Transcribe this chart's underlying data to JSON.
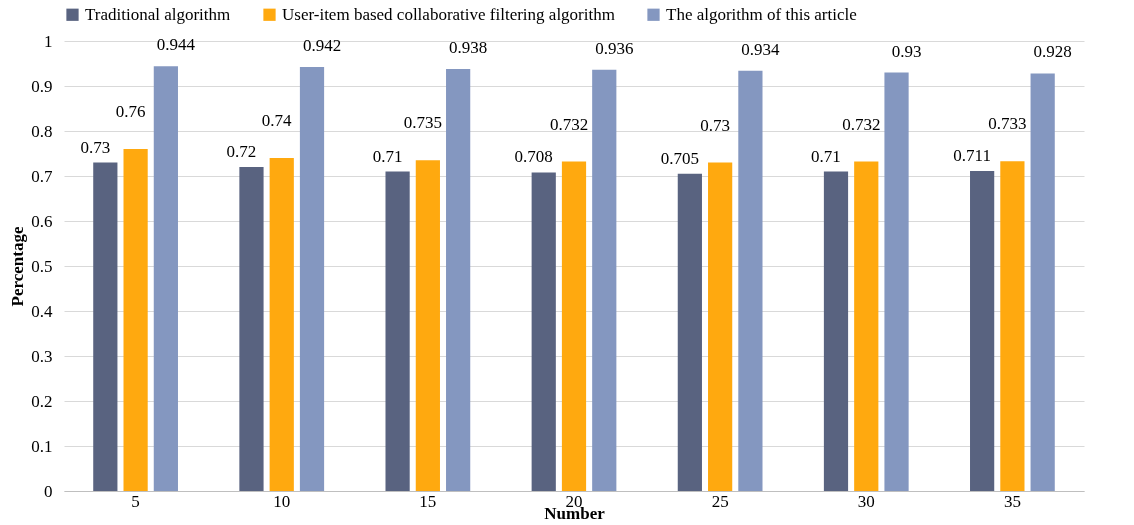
{
  "chart_data": {
    "type": "bar",
    "xlabel": "Number",
    "ylabel": "Percentage",
    "categories": [
      "5",
      "10",
      "15",
      "20",
      "25",
      "30",
      "35"
    ],
    "series": [
      {
        "name": "Traditional algorithm",
        "color": "#596380",
        "values": [
          0.73,
          0.72,
          0.71,
          0.708,
          0.705,
          0.71,
          0.711
        ]
      },
      {
        "name": "User-item based collaborative filtering algorithm",
        "color": "#ffa90f",
        "values": [
          0.76,
          0.74,
          0.735,
          0.732,
          0.73,
          0.732,
          0.733
        ]
      },
      {
        "name": "The algorithm of this article",
        "color": "#8497c0",
        "values": [
          0.944,
          0.942,
          0.938,
          0.936,
          0.934,
          0.93,
          0.928
        ]
      }
    ],
    "ylim": [
      0,
      1
    ],
    "yticks": [
      {
        "value": 0,
        "label": "0"
      },
      0.1,
      0.2,
      0.3,
      0.4,
      0.5,
      0.6,
      0.7,
      0.8,
      0.9,
      {
        "value": 1,
        "label": "1"
      }
    ],
    "grid": "y",
    "legend": "top left",
    "data_labels": true
  }
}
